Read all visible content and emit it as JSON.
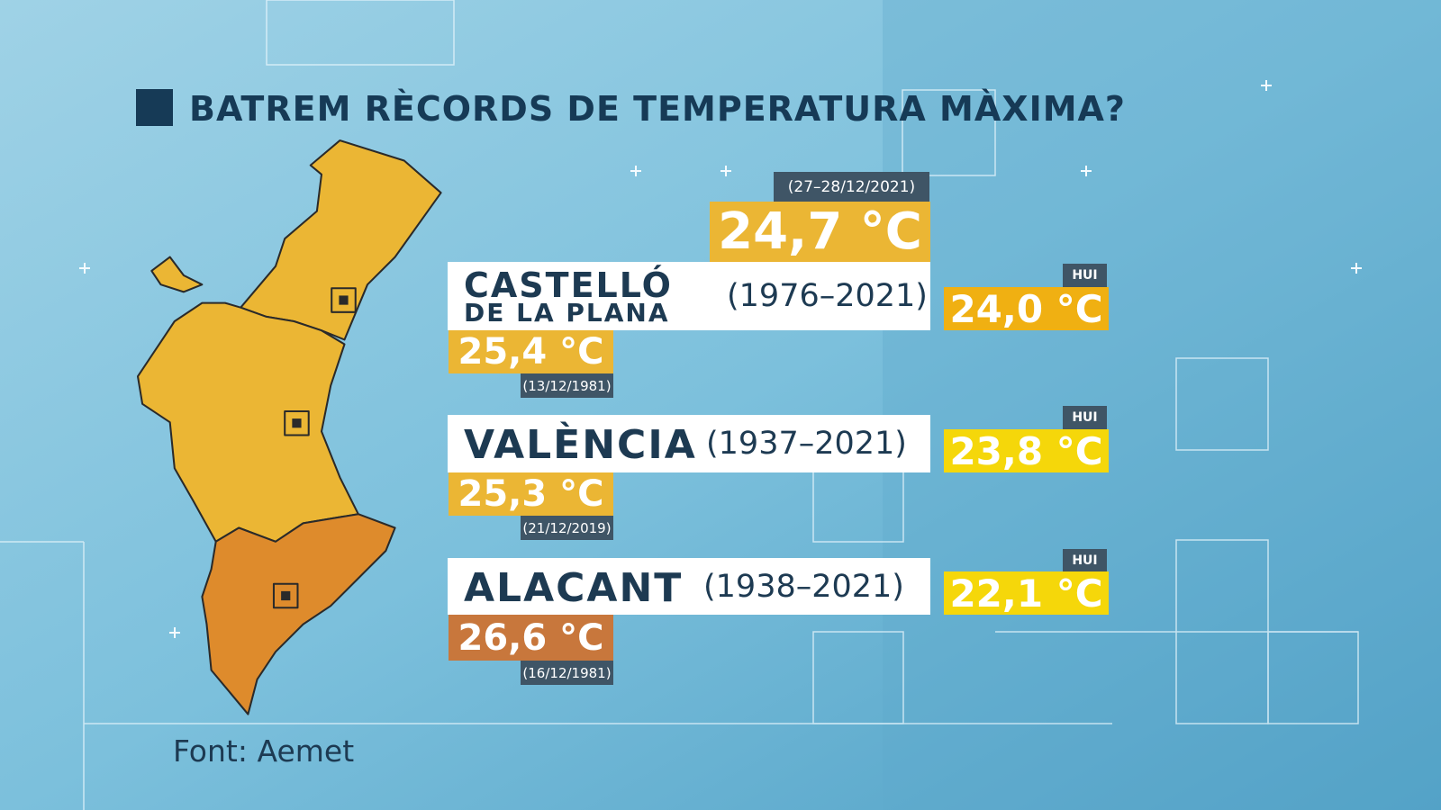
{
  "header": {
    "title": "BATREM RÈCORDS DE TEMPERATURA MÀXIMA?"
  },
  "new_record": {
    "value": "24,7 °C",
    "date": "(27–28/12/2021)"
  },
  "stations": [
    {
      "name_line1": "CASTELLÓ",
      "name_line2": "DE LA PLANA",
      "period": "(1976–2021)",
      "record": "25,4 °C",
      "record_date": "(13/12/1981)",
      "today_label": "HUI",
      "today": "24,0 °C"
    },
    {
      "name": "VALÈNCIA",
      "period": "(1937–2021)",
      "record": "25,3 °C",
      "record_date": "(21/12/2019)",
      "today_label": "HUI",
      "today": "23,8 °C"
    },
    {
      "name": "ALACANT",
      "period": "(1938–2021)",
      "record": "26,6 °C",
      "record_date": "(16/12/1981)",
      "today_label": "HUI",
      "today": "22,1 °C"
    }
  ],
  "footer": {
    "source": "Font: Aemet"
  }
}
